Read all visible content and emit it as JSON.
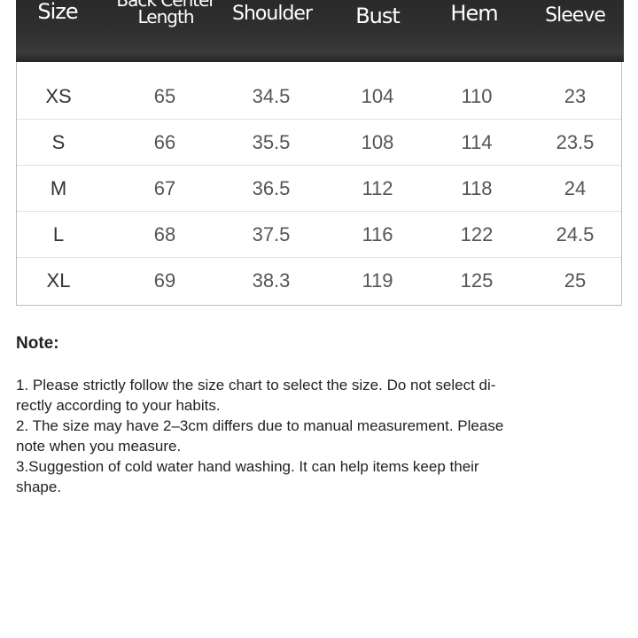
{
  "table": {
    "headers": [
      "Size",
      "Back Center\nLength",
      "Shoulder",
      "Bust",
      "Hem",
      "Sleeve"
    ],
    "rows": [
      [
        "XS",
        "65",
        "34.5",
        "104",
        "110",
        "23"
      ],
      [
        "S",
        "66",
        "35.5",
        "108",
        "114",
        "23.5"
      ],
      [
        "M",
        "67",
        "36.5",
        "112",
        "118",
        "24"
      ],
      [
        "L",
        "68",
        "37.5",
        "116",
        "122",
        "24.5"
      ],
      [
        "XL",
        "69",
        "38.3",
        "119",
        "125",
        "25"
      ]
    ]
  },
  "notes": {
    "title": "Note:",
    "lines": [
      "1. Please strictly follow the size chart  to select the size. Do not select di-",
      "rectly according to your habits.",
      "2. The size may have 2–3cm differs due to manual measurement. Please",
      "note when you measure.",
      "3.Suggestion of cold water hand washing. It can help items keep their",
      "shape."
    ]
  }
}
